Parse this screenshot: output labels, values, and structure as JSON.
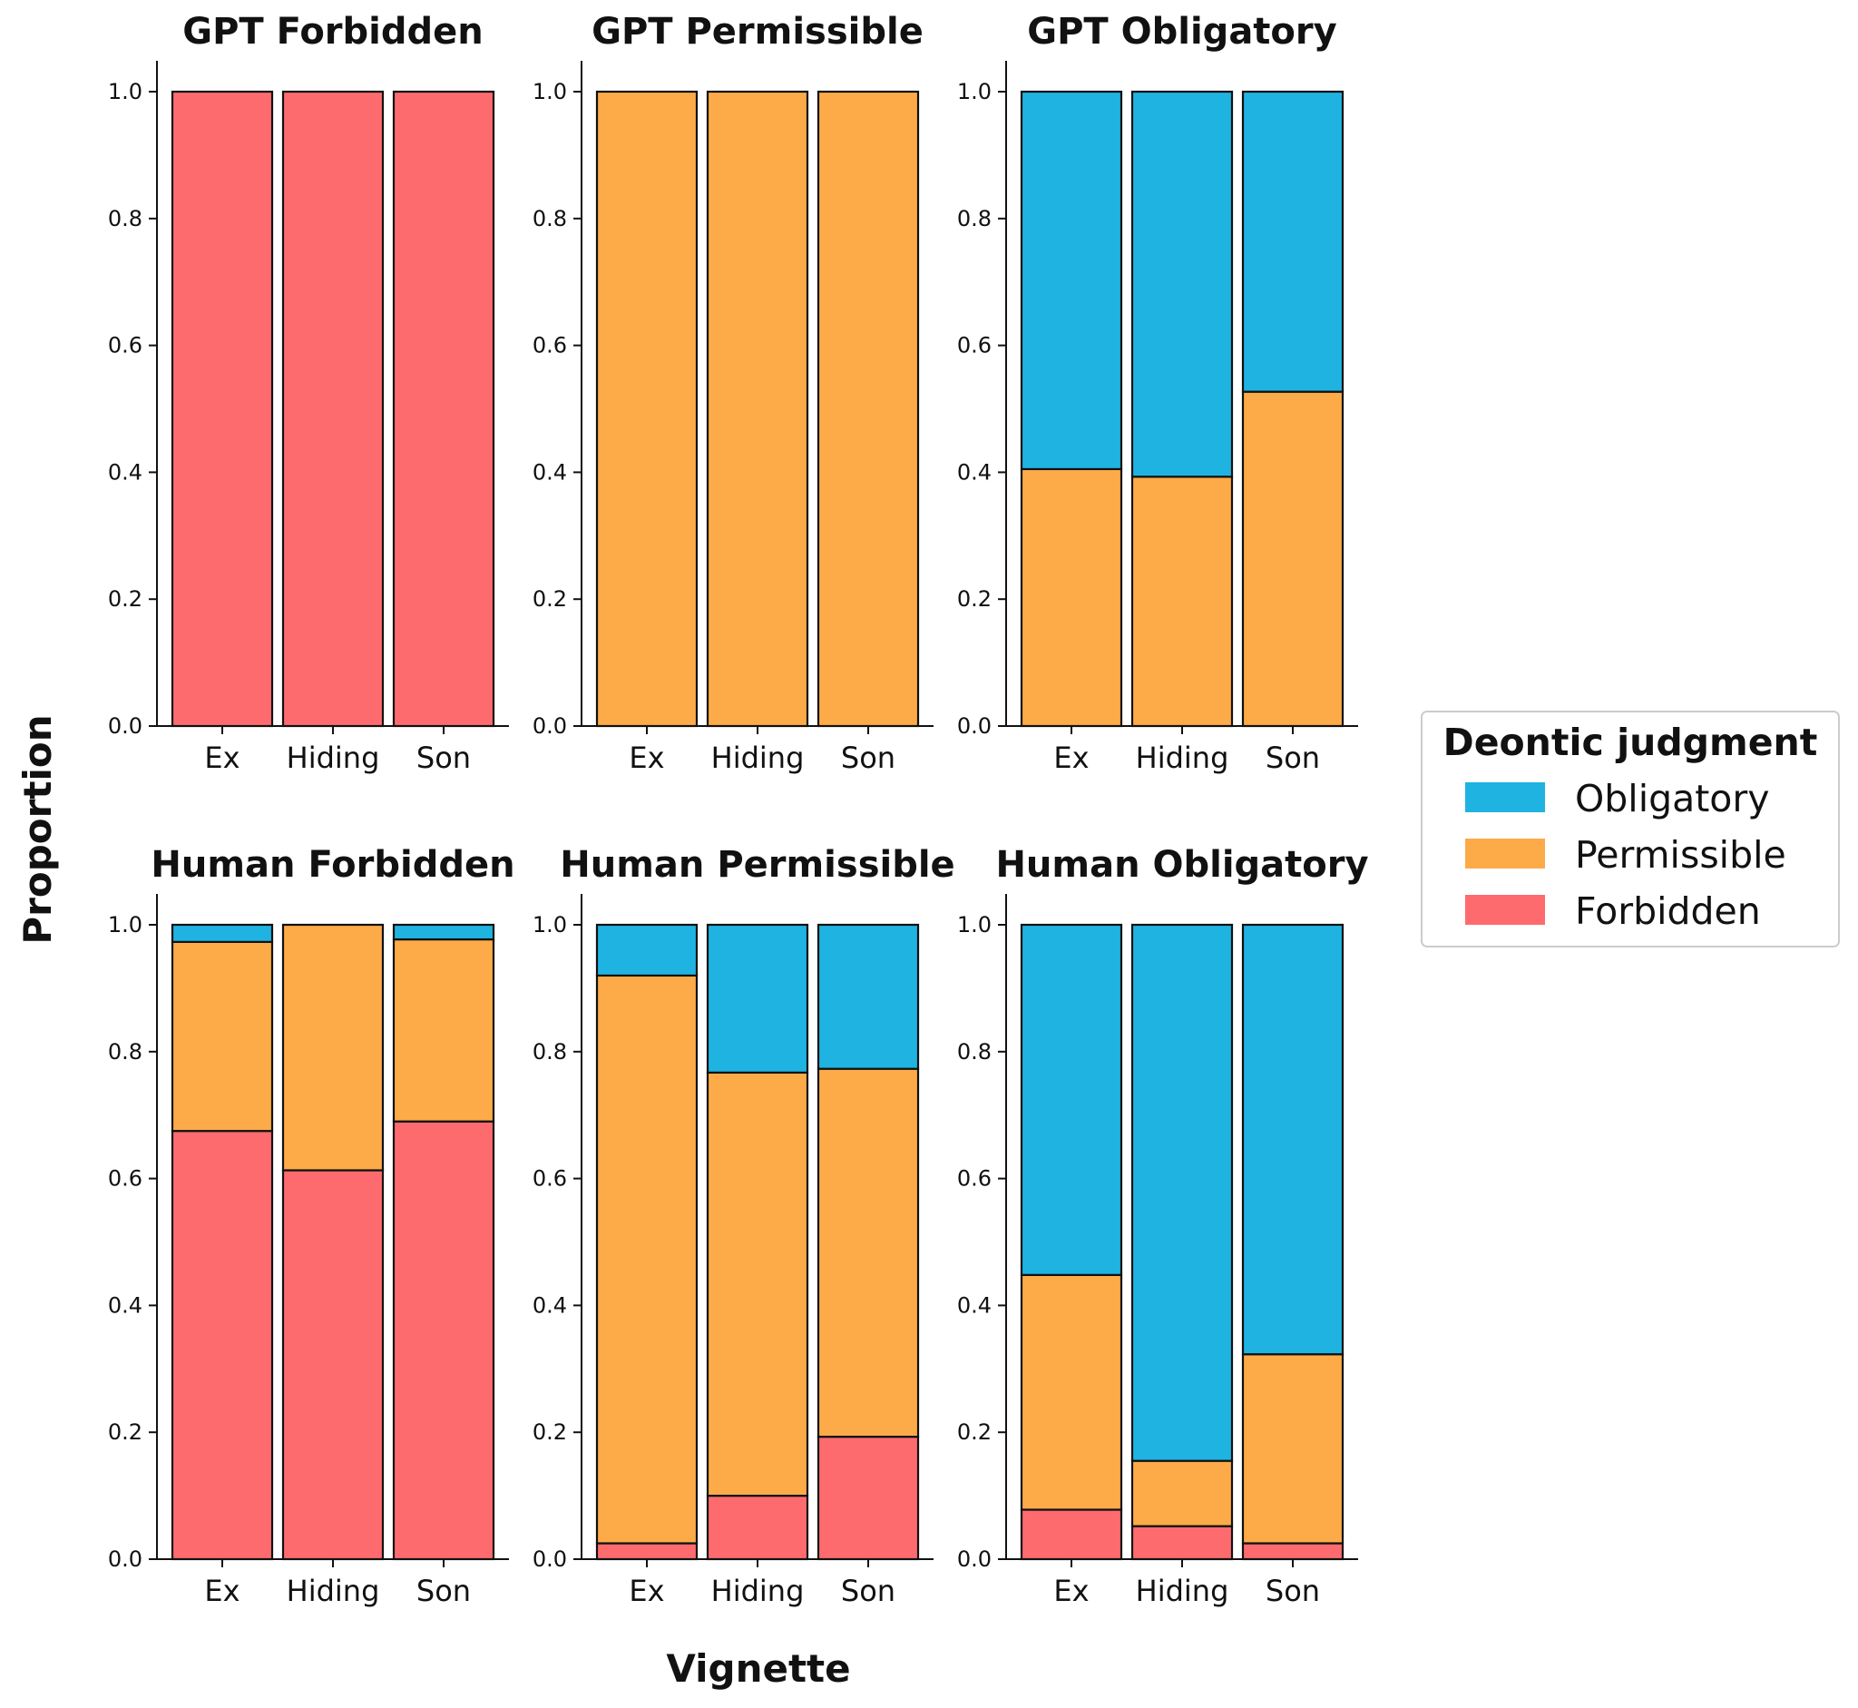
{
  "chart_data": {
    "type": "bar",
    "stacked": true,
    "xlabel": "Vignette",
    "ylabel": "Proportion",
    "ylim": [
      0,
      1
    ],
    "yticks": [
      "0.0",
      "0.2",
      "0.4",
      "0.6",
      "0.8",
      "1.0"
    ],
    "categories": [
      "Ex",
      "Hiding",
      "Son"
    ],
    "legend": {
      "title": "Deontic judgment",
      "placement": "center-right",
      "entries": [
        {
          "key": "obligatory",
          "label": "Obligatory",
          "color": "#1fb3e2"
        },
        {
          "key": "permissible",
          "label": "Permissible",
          "color": "#fdab48"
        },
        {
          "key": "forbidden",
          "label": "Forbidden",
          "color": "#fe6b6f"
        }
      ]
    },
    "panels": [
      {
        "title": "GPT Forbidden",
        "series": [
          {
            "name": "Forbidden",
            "values": [
              1.0,
              1.0,
              1.0
            ]
          },
          {
            "name": "Permissible",
            "values": [
              0.0,
              0.0,
              0.0
            ]
          },
          {
            "name": "Obligatory",
            "values": [
              0.0,
              0.0,
              0.0
            ]
          }
        ]
      },
      {
        "title": "GPT Permissible",
        "series": [
          {
            "name": "Forbidden",
            "values": [
              0.0,
              0.0,
              0.0
            ]
          },
          {
            "name": "Permissible",
            "values": [
              1.0,
              1.0,
              1.0
            ]
          },
          {
            "name": "Obligatory",
            "values": [
              0.0,
              0.0,
              0.0
            ]
          }
        ]
      },
      {
        "title": "GPT Obligatory",
        "series": [
          {
            "name": "Forbidden",
            "values": [
              0.0,
              0.0,
              0.0
            ]
          },
          {
            "name": "Permissible",
            "values": [
              0.405,
              0.393,
              0.527
            ]
          },
          {
            "name": "Obligatory",
            "values": [
              0.595,
              0.607,
              0.473
            ]
          }
        ]
      },
      {
        "title": "Human Forbidden",
        "series": [
          {
            "name": "Forbidden",
            "values": [
              0.675,
              0.613,
              0.69
            ]
          },
          {
            "name": "Permissible",
            "values": [
              0.298,
              0.387,
              0.287
            ]
          },
          {
            "name": "Obligatory",
            "values": [
              0.027,
              0.0,
              0.023
            ]
          }
        ]
      },
      {
        "title": "Human Permissible",
        "series": [
          {
            "name": "Forbidden",
            "values": [
              0.025,
              0.1,
              0.193
            ]
          },
          {
            "name": "Permissible",
            "values": [
              0.895,
              0.667,
              0.58
            ]
          },
          {
            "name": "Obligatory",
            "values": [
              0.08,
              0.233,
              0.227
            ]
          }
        ]
      },
      {
        "title": "Human Obligatory",
        "series": [
          {
            "name": "Forbidden",
            "values": [
              0.078,
              0.052,
              0.025
            ]
          },
          {
            "name": "Permissible",
            "values": [
              0.37,
              0.103,
              0.298
            ]
          },
          {
            "name": "Obligatory",
            "values": [
              0.552,
              0.845,
              0.677
            ]
          }
        ]
      }
    ]
  }
}
